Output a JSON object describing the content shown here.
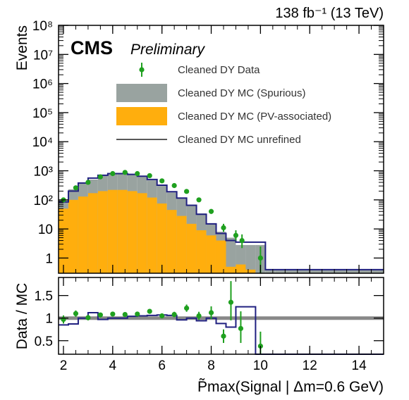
{
  "lumi_label": "138 fb⁻¹ (13 TeV)",
  "experiment": "CMS",
  "status_label": "Preliminary",
  "colors": {
    "spurious": "#99a3a0",
    "pv_associated": "#ffae0d",
    "unrefined": "#202080",
    "data": "#1fa01f",
    "unity_line": "#888888"
  },
  "chart_data": [
    {
      "type": "histogram",
      "ylabel": "Events",
      "yscale": "log",
      "ylim": [
        0.3,
        100000000
      ],
      "xlim": [
        1.8,
        15
      ],
      "ytick_labels": [
        "1",
        "10",
        "10²",
        "10³",
        "10⁴",
        "10⁵",
        "10⁶",
        "10⁷",
        "10⁸"
      ],
      "ytick_values": [
        1,
        10,
        100,
        1000,
        10000,
        100000,
        1000000,
        10000000,
        100000000
      ],
      "legend": {
        "position": "top-right",
        "entries": [
          {
            "label": "Cleaned DY Data",
            "kind": "data"
          },
          {
            "label": "Cleaned DY MC (Spurious)",
            "kind": "spurious"
          },
          {
            "label": "Cleaned DY MC (PV-associated)",
            "kind": "pv_associated"
          },
          {
            "label": "Cleaned DY MC unrefined",
            "kind": "unrefined"
          }
        ]
      },
      "bin_edges": [
        1.8,
        2.2,
        2.6,
        3.0,
        3.4,
        3.8,
        4.2,
        4.6,
        5.0,
        5.4,
        5.8,
        6.2,
        6.6,
        7.0,
        7.4,
        7.8,
        8.2,
        8.6,
        9.0,
        9.4,
        9.8,
        10.2,
        10.6,
        15.0
      ],
      "series": [
        {
          "name": "Cleaned DY MC (PV-associated)",
          "kind": "stack",
          "values": [
            50,
            100,
            130,
            170,
            200,
            220,
            220,
            200,
            170,
            120,
            75,
            45,
            28,
            15,
            9,
            6,
            4,
            0.5,
            0.6,
            0.4,
            0.3,
            0.3,
            0.3
          ]
        },
        {
          "name": "Cleaned DY MC (Spurious)",
          "kind": "stack_total",
          "values": [
            100,
            230,
            380,
            500,
            720,
            800,
            800,
            720,
            620,
            470,
            300,
            180,
            120,
            65,
            34,
            15,
            8,
            5,
            2.8,
            2.8,
            2.8,
            0.4,
            0.4
          ]
        },
        {
          "name": "Cleaned DY MC unrefined",
          "kind": "line",
          "values": [
            85,
            200,
            380,
            560,
            700,
            800,
            800,
            750,
            650,
            500,
            320,
            190,
            115,
            65,
            32,
            15,
            7,
            4,
            3.5,
            3.5,
            3.5,
            0.4,
            0.4
          ]
        }
      ],
      "data_points": [
        {
          "x": 2.0,
          "y": 100,
          "ylo": 85,
          "yhi": 118
        },
        {
          "x": 2.5,
          "y": 260,
          "ylo": 235,
          "yhi": 285
        },
        {
          "x": 3.0,
          "y": 400,
          "ylo": 370,
          "yhi": 430
        },
        {
          "x": 3.5,
          "y": 620,
          "ylo": 585,
          "yhi": 655
        },
        {
          "x": 4.0,
          "y": 800,
          "ylo": 760,
          "yhi": 840
        },
        {
          "x": 4.5,
          "y": 880,
          "ylo": 840,
          "yhi": 920
        },
        {
          "x": 5.0,
          "y": 800,
          "ylo": 760,
          "yhi": 840
        },
        {
          "x": 5.5,
          "y": 680,
          "ylo": 645,
          "yhi": 715
        },
        {
          "x": 6.0,
          "y": 450,
          "ylo": 420,
          "yhi": 480
        },
        {
          "x": 6.5,
          "y": 310,
          "ylo": 285,
          "yhi": 335
        },
        {
          "x": 7.0,
          "y": 195,
          "ylo": 175,
          "yhi": 215
        },
        {
          "x": 7.5,
          "y": 100,
          "ylo": 88,
          "yhi": 113
        },
        {
          "x": 8.0,
          "y": 40,
          "ylo": 33,
          "yhi": 48
        },
        {
          "x": 8.5,
          "y": 11,
          "ylo": 8,
          "yhi": 15
        },
        {
          "x": 9.0,
          "y": 6,
          "ylo": 4,
          "yhi": 9
        },
        {
          "x": 9.25,
          "y": 4,
          "ylo": 2.2,
          "yhi": 6.5
        },
        {
          "x": 10.0,
          "y": 1,
          "ylo": 0.3,
          "yhi": 2.5
        }
      ]
    },
    {
      "type": "ratio",
      "ylabel": "Data / MC",
      "xlabel": "P̃max(Signal | Δm=0.6 GeV)",
      "ylim": [
        0.2,
        1.9
      ],
      "xlim": [
        1.8,
        15
      ],
      "ytick_values": [
        0.5,
        1,
        1.5
      ],
      "ytick_labels": [
        "0.5",
        "1",
        "1.5"
      ],
      "xtick_values": [
        2,
        4,
        6,
        8,
        10,
        12,
        14
      ],
      "xtick_labels": [
        "2",
        "4",
        "6",
        "8",
        "10",
        "12",
        "14"
      ],
      "reference_line": 1,
      "unrefined_ratio": [
        0.85,
        0.87,
        1.0,
        1.12,
        0.97,
        1.0,
        1.0,
        1.04,
        1.05,
        1.06,
        1.07,
        1.06,
        0.96,
        1.0,
        0.94,
        1.0,
        0.88,
        0.8,
        1.25,
        1.25,
        0.2,
        0.2,
        0.2
      ],
      "data_points": [
        {
          "x": 2.0,
          "y": 0.97,
          "ylo": 0.88,
          "yhi": 1.06
        },
        {
          "x": 2.5,
          "y": 1.1,
          "ylo": 1.03,
          "yhi": 1.17
        },
        {
          "x": 3.0,
          "y": 1.01,
          "ylo": 0.95,
          "yhi": 1.07
        },
        {
          "x": 3.5,
          "y": 1.07,
          "ylo": 1.02,
          "yhi": 1.12
        },
        {
          "x": 4.0,
          "y": 1.09,
          "ylo": 1.04,
          "yhi": 1.14
        },
        {
          "x": 4.5,
          "y": 1.08,
          "ylo": 1.03,
          "yhi": 1.13
        },
        {
          "x": 5.0,
          "y": 1.09,
          "ylo": 1.04,
          "yhi": 1.14
        },
        {
          "x": 5.5,
          "y": 1.15,
          "ylo": 1.1,
          "yhi": 1.2
        },
        {
          "x": 6.0,
          "y": 1.05,
          "ylo": 1.0,
          "yhi": 1.1
        },
        {
          "x": 6.5,
          "y": 1.08,
          "ylo": 1.02,
          "yhi": 1.14
        },
        {
          "x": 7.0,
          "y": 1.22,
          "ylo": 1.14,
          "yhi": 1.3
        },
        {
          "x": 7.5,
          "y": 1.05,
          "ylo": 0.96,
          "yhi": 1.14
        },
        {
          "x": 8.0,
          "y": 1.12,
          "ylo": 0.98,
          "yhi": 1.26
        },
        {
          "x": 8.5,
          "y": 0.6,
          "ylo": 0.45,
          "yhi": 0.75
        },
        {
          "x": 8.8,
          "y": 1.35,
          "ylo": 0.95,
          "yhi": 1.82
        },
        {
          "x": 9.2,
          "y": 0.77,
          "ylo": 0.45,
          "yhi": 1.15
        },
        {
          "x": 10.0,
          "y": 0.38,
          "ylo": 0.2,
          "yhi": 0.7
        }
      ]
    }
  ]
}
